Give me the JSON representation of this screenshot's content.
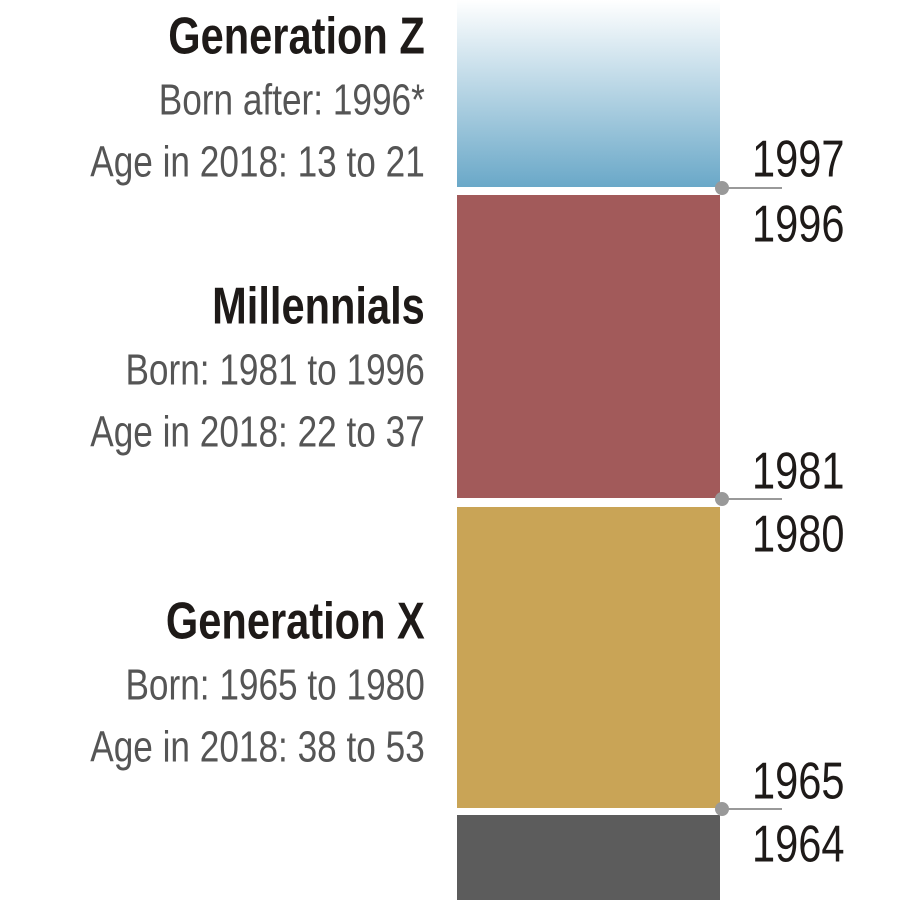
{
  "generations": [
    {
      "name": "Generation Z",
      "born": "Born after: 1996*",
      "age": "Age in 2018: 13 to 21"
    },
    {
      "name": "Millennials",
      "born": "Born: 1981 to 1996",
      "age": "Age in 2018: 22 to 37"
    },
    {
      "name": "Generation X",
      "born": "Born: 1965 to 1980",
      "age": "Age in 2018: 38 to 53"
    }
  ],
  "boundaries": [
    {
      "upper": "1997",
      "lower": "1996"
    },
    {
      "upper": "1981",
      "lower": "1980"
    },
    {
      "upper": "1965",
      "lower": "1964"
    }
  ]
}
